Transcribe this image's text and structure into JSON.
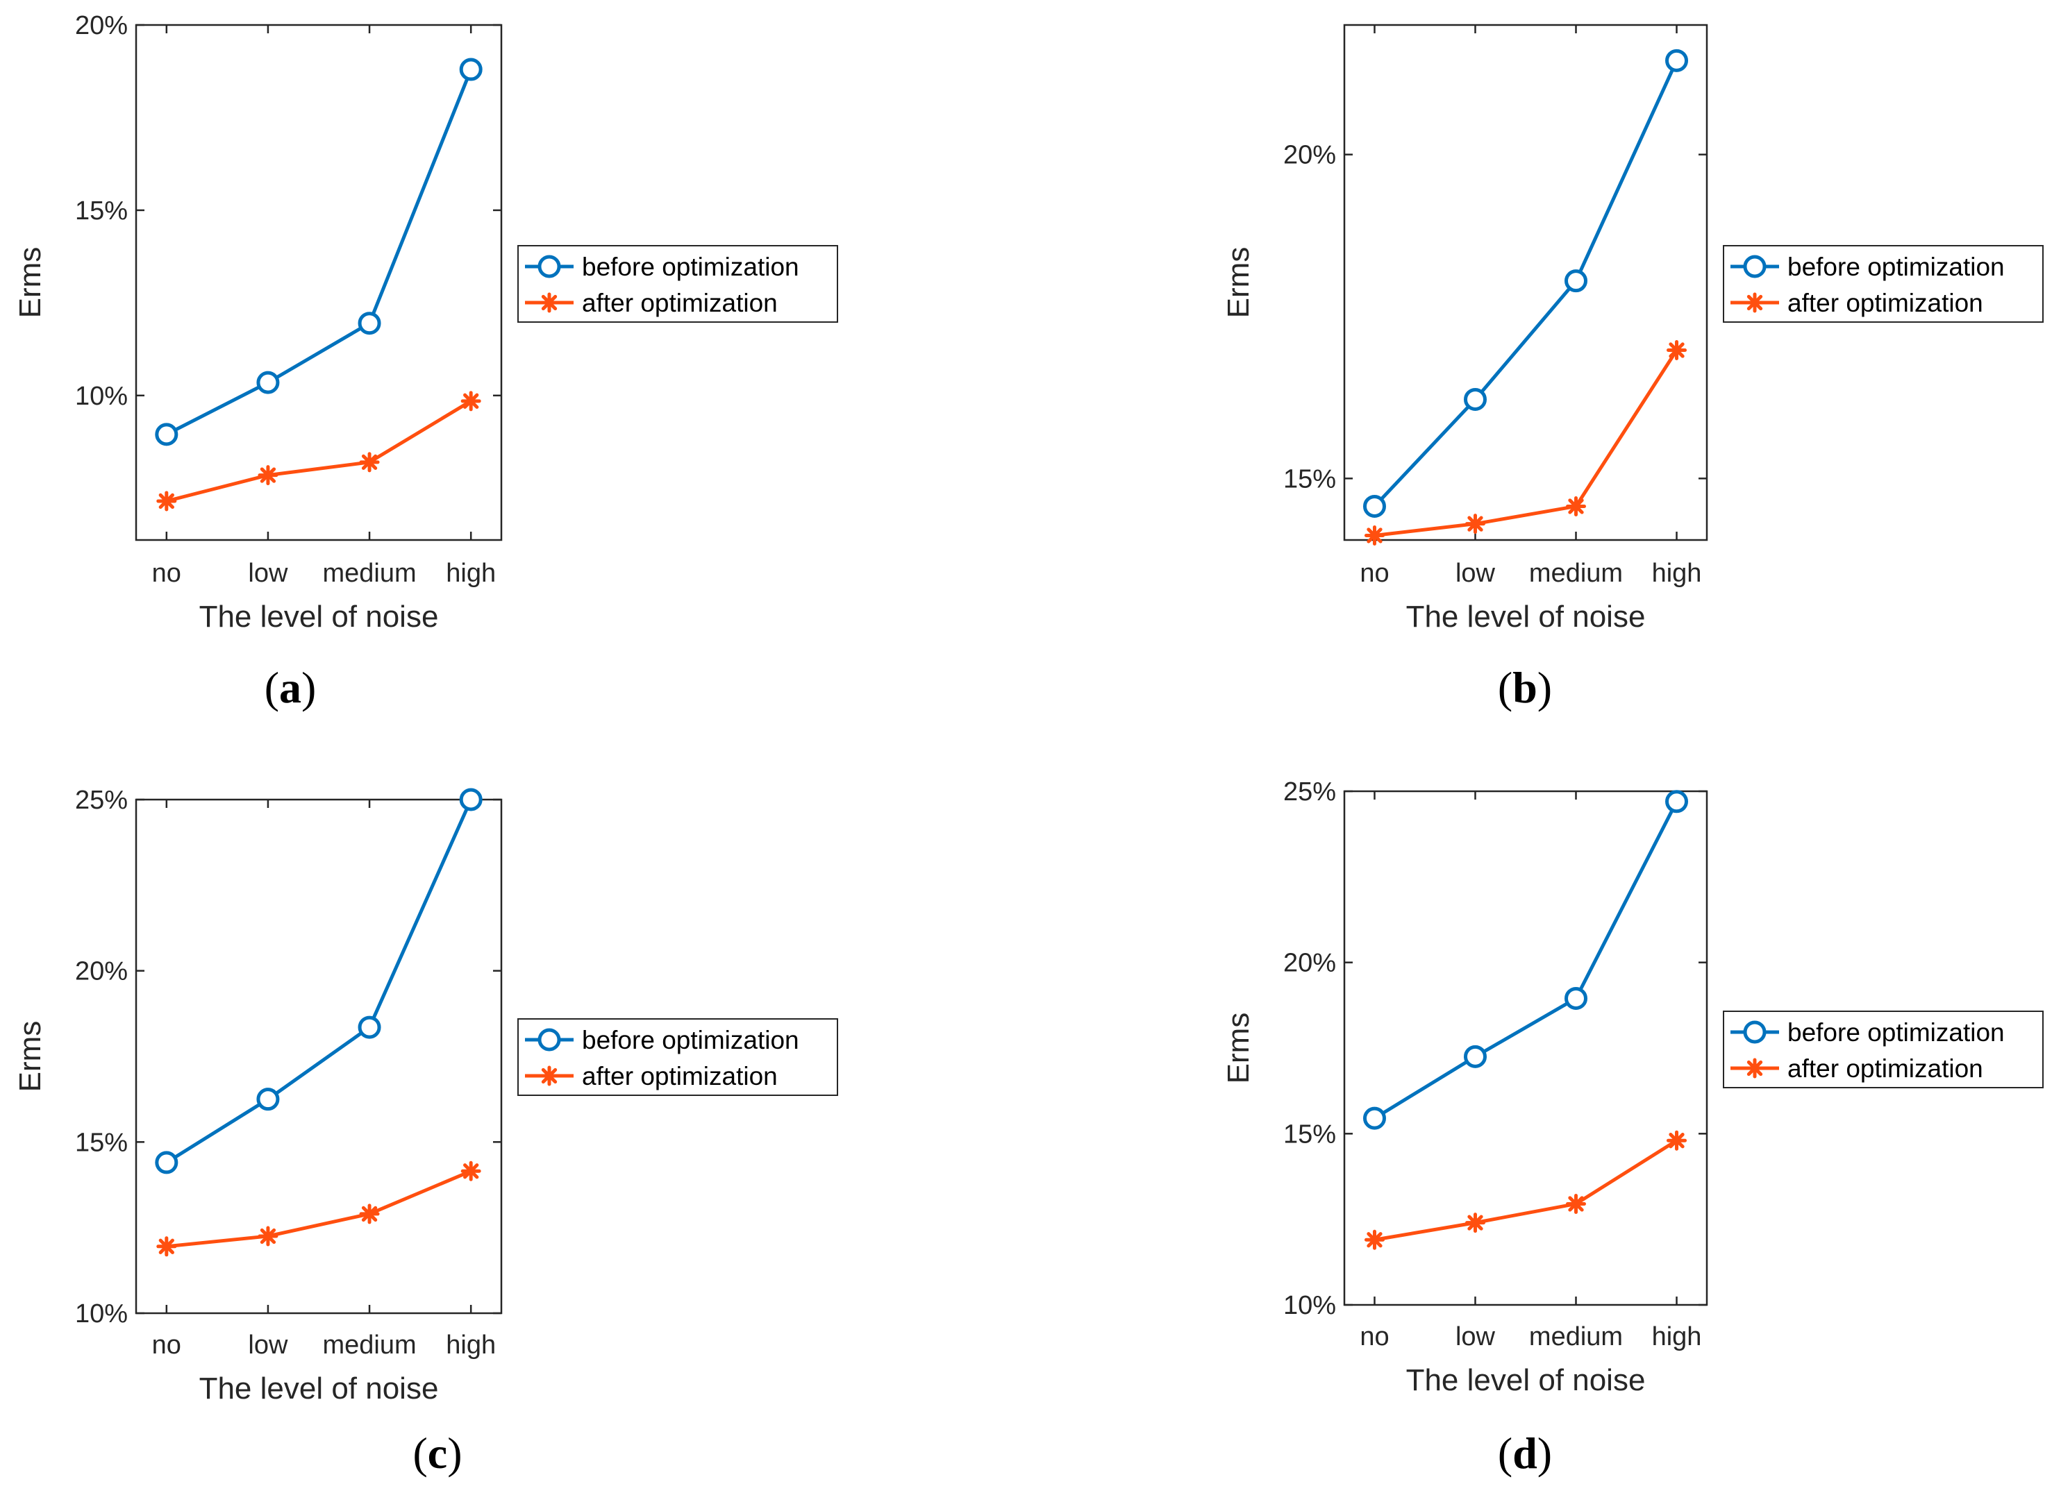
{
  "chart_data": [
    {
      "type": "line",
      "panel_label": "a",
      "xlabel": "The level of noise",
      "ylabel": "Erms",
      "categories": [
        "no",
        "low",
        "medium",
        "high"
      ],
      "ylim": [
        6.1,
        20
      ],
      "yticks": [
        10,
        15,
        20
      ],
      "ytick_labels": [
        "10%",
        "15%",
        "20%"
      ],
      "series": [
        {
          "name": "before optimization",
          "values": [
            8.95,
            10.35,
            11.95,
            18.8
          ]
        },
        {
          "name": "after optimization",
          "values": [
            7.15,
            7.85,
            8.2,
            9.85
          ]
        }
      ],
      "legend": "right-outside",
      "grid": false
    },
    {
      "type": "line",
      "panel_label": "b",
      "xlabel": "The level of noise",
      "ylabel": "Erms",
      "categories": [
        "no",
        "low",
        "medium",
        "high"
      ],
      "ylim": [
        14.05,
        22.0
      ],
      "yticks": [
        15,
        20
      ],
      "ytick_labels": [
        "15%",
        "20%"
      ],
      "series": [
        {
          "name": "before optimization",
          "values": [
            14.57,
            16.22,
            18.05,
            21.45
          ]
        },
        {
          "name": "after optimization",
          "values": [
            14.12,
            14.3,
            14.57,
            16.98
          ]
        }
      ],
      "legend": "right-outside",
      "grid": false
    },
    {
      "type": "line",
      "panel_label": "c",
      "xlabel": "The level of noise",
      "ylabel": "Erms",
      "categories": [
        "no",
        "low",
        "medium",
        "high"
      ],
      "ylim": [
        10,
        25
      ],
      "yticks": [
        10,
        15,
        20,
        25
      ],
      "ytick_labels": [
        "10%",
        "15%",
        "20%",
        "25%"
      ],
      "series": [
        {
          "name": "before optimization",
          "values": [
            14.4,
            16.25,
            18.35,
            25.0
          ]
        },
        {
          "name": "after optimization",
          "values": [
            11.95,
            12.25,
            12.9,
            14.15
          ]
        }
      ],
      "legend": "right-outside",
      "grid": false
    },
    {
      "type": "line",
      "panel_label": "d",
      "xlabel": "The level of noise",
      "ylabel": "Erms",
      "categories": [
        "no",
        "low",
        "medium",
        "high"
      ],
      "ylim": [
        10,
        25
      ],
      "yticks": [
        10,
        15,
        20,
        25
      ],
      "ytick_labels": [
        "10%",
        "15%",
        "20%",
        "25%"
      ],
      "series": [
        {
          "name": "before optimization",
          "values": [
            15.45,
            17.25,
            18.95,
            24.7
          ]
        },
        {
          "name": "after optimization",
          "values": [
            11.9,
            12.4,
            12.95,
            14.8
          ]
        }
      ],
      "legend": "right-outside",
      "grid": false
    }
  ],
  "colors": {
    "before": "#0072BD",
    "after": "#FF4F0F",
    "axis": "#262626"
  },
  "markers": {
    "before": "circle-marker",
    "after": "asterisk-marker"
  }
}
